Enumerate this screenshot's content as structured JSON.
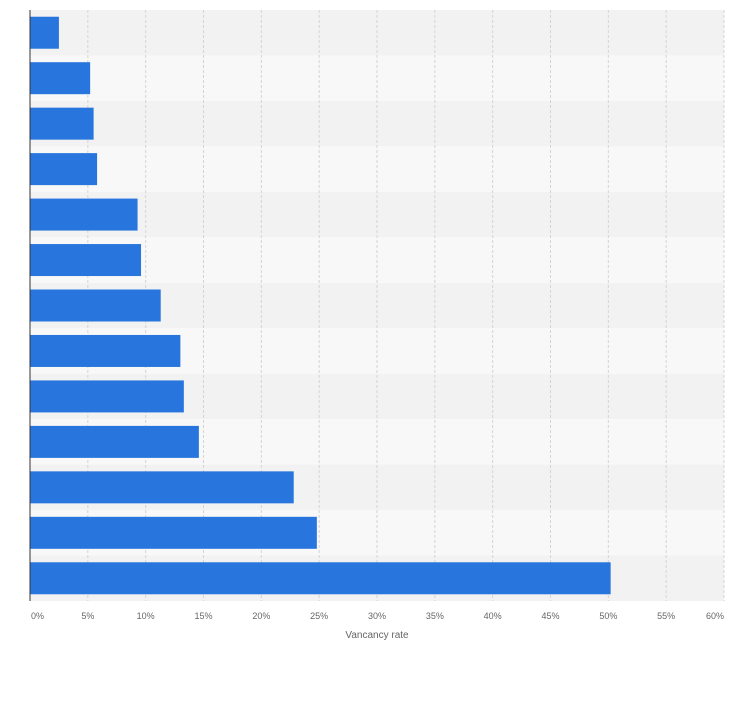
{
  "chart_data": {
    "type": "bar",
    "orientation": "horizontal",
    "categories": [
      "",
      "",
      "",
      "",
      "",
      "",
      "",
      "",
      "",
      "",
      "",
      "",
      ""
    ],
    "values": [
      2.5,
      5.2,
      5.5,
      5.8,
      9.3,
      9.6,
      11.3,
      13.0,
      13.3,
      14.6,
      22.8,
      24.8,
      50.2
    ],
    "xlabel": "Vancancy rate",
    "xlim": [
      0,
      60
    ],
    "xticks": [
      0,
      5,
      10,
      15,
      20,
      25,
      30,
      35,
      40,
      45,
      50,
      55,
      60
    ],
    "xtick_labels": [
      "0%",
      "5%",
      "10%",
      "15%",
      "20%",
      "25%",
      "30%",
      "35%",
      "40%",
      "45%",
      "50%",
      "55%",
      "60%"
    ],
    "grid": true,
    "colors": {
      "bar": "#2876dd",
      "band_dark": "#f2f2f2",
      "band_light": "#f8f8f8",
      "grid": "#d4d4d4",
      "axis": "#333333",
      "text": "#666666"
    }
  }
}
